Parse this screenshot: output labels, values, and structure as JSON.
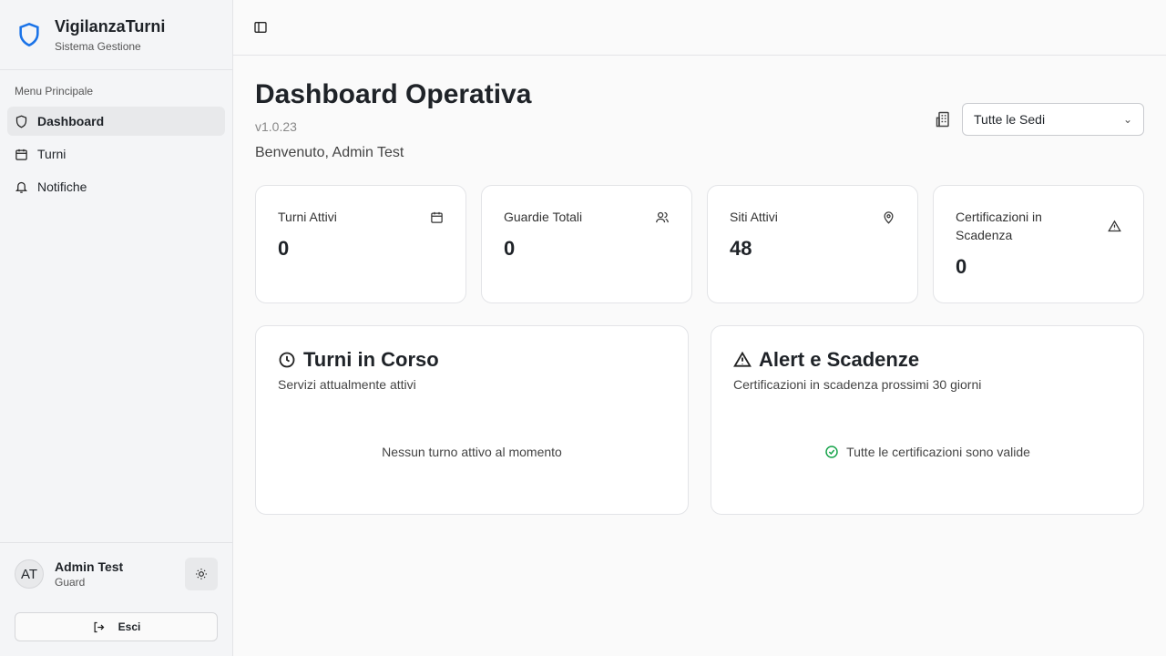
{
  "app": {
    "title": "VigilanzaTurni",
    "subtitle": "Sistema Gestione"
  },
  "sidebar": {
    "section": "Menu Principale",
    "items": [
      {
        "label": "Dashboard",
        "icon": "shield-icon"
      },
      {
        "label": "Turni",
        "icon": "calendar-icon"
      },
      {
        "label": "Notifiche",
        "icon": "bell-icon"
      }
    ]
  },
  "user": {
    "initials": "AT",
    "name": "Admin Test",
    "role": "Guard",
    "logout": "Esci"
  },
  "page": {
    "title": "Dashboard Operativa",
    "version": "v1.0.23",
    "welcome": "Benvenuto, Admin Test",
    "site_select": "Tutte le Sedi"
  },
  "stats": [
    {
      "label": "Turni Attivi",
      "value": "0",
      "icon": "calendar-icon"
    },
    {
      "label": "Guardie Totali",
      "value": "0",
      "icon": "users-icon"
    },
    {
      "label": "Siti Attivi",
      "value": "48",
      "icon": "map-pin-icon"
    },
    {
      "label": "Certificazioni in Scadenza",
      "value": "0",
      "icon": "alert-triangle-icon"
    }
  ],
  "panels": {
    "shifts": {
      "title": "Turni in Corso",
      "desc": "Servizi attualmente attivi",
      "empty": "Nessun turno attivo al momento"
    },
    "alerts": {
      "title": "Alert e Scadenze",
      "desc": "Certificazioni in scadenza prossimi 30 giorni",
      "empty": "Tutte le certificazioni sono valide"
    }
  },
  "colors": {
    "brand": "#1a73e8",
    "success": "#16a34a"
  }
}
